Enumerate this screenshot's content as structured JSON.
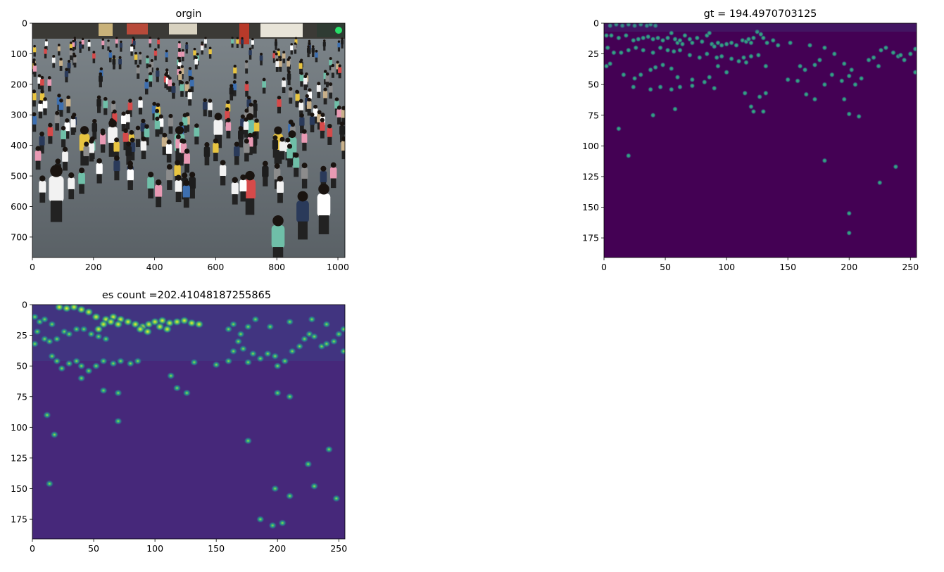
{
  "figure": {
    "panels": [
      {
        "id": "orgin",
        "title": "orgin"
      },
      {
        "id": "gt",
        "title": "gt = 194.4970703125"
      },
      {
        "id": "es",
        "title": "es count =202.41048187255865"
      }
    ]
  },
  "colors": {
    "viridis_dark": "#440154",
    "viridis_bg_es": "#46287a",
    "viridis_mid": "#21918c",
    "viridis_bright": "#5ec962",
    "viridis_yellow": "#fde725"
  },
  "chart_data": [
    {
      "type": "heatmap",
      "title": "orgin",
      "image": "photo of a dense crowd of pedestrians on a paved street",
      "xlim": [
        0,
        1023
      ],
      "ylim": [
        767,
        0
      ],
      "xticks": [
        0,
        200,
        400,
        600,
        800,
        1000
      ],
      "yticks": [
        0,
        100,
        200,
        300,
        400,
        500,
        600,
        700
      ]
    },
    {
      "type": "heatmap",
      "title": "gt = 194.4970703125",
      "colormap": "viridis",
      "xlim": [
        0,
        255
      ],
      "ylim": [
        191,
        0
      ],
      "xticks": [
        0,
        50,
        100,
        150,
        200,
        250
      ],
      "yticks": [
        0,
        25,
        50,
        75,
        100,
        125,
        150,
        175
      ]
    },
    {
      "type": "heatmap",
      "title": "es count =202.41048187255865",
      "colormap": "viridis",
      "xlim": [
        0,
        255
      ],
      "ylim": [
        191,
        0
      ],
      "xticks": [
        0,
        50,
        100,
        150,
        200,
        250
      ],
      "yticks": [
        0,
        25,
        50,
        75,
        100,
        125,
        150,
        175
      ]
    }
  ]
}
